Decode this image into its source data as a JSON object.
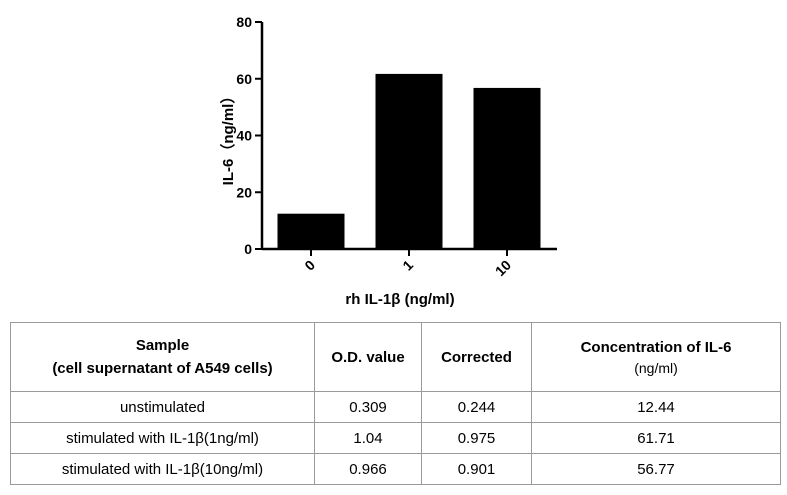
{
  "chart_data": {
    "type": "bar",
    "categories": [
      "0",
      "1",
      "10"
    ],
    "values": [
      12.44,
      61.71,
      56.77
    ],
    "xlabel": "rh IL-1β (ng/ml)",
    "ylabel": "IL-6（ng/ml）",
    "ylim": [
      0,
      80
    ],
    "yticks": [
      "0",
      "20",
      "40",
      "60",
      "80"
    ],
    "grid": false,
    "bar_color": "#000000"
  },
  "table": {
    "headers": {
      "sample_line1": "Sample",
      "sample_line2": "(cell supernatant of A549 cells)",
      "od": "O.D. value",
      "corrected": "Corrected",
      "conc_line1": "Concentration of IL-6",
      "conc_line2": "(ng/ml)"
    },
    "rows": [
      {
        "sample": "unstimulated",
        "od": "0.309",
        "corrected": "0.244",
        "conc": "12.44"
      },
      {
        "sample": "stimulated with IL-1β(1ng/ml)",
        "od": "1.04",
        "corrected": "0.975",
        "conc": "61.71"
      },
      {
        "sample": "stimulated with IL-1β(10ng/ml)",
        "od": "0.966",
        "corrected": "0.901",
        "conc": "56.77"
      }
    ]
  }
}
